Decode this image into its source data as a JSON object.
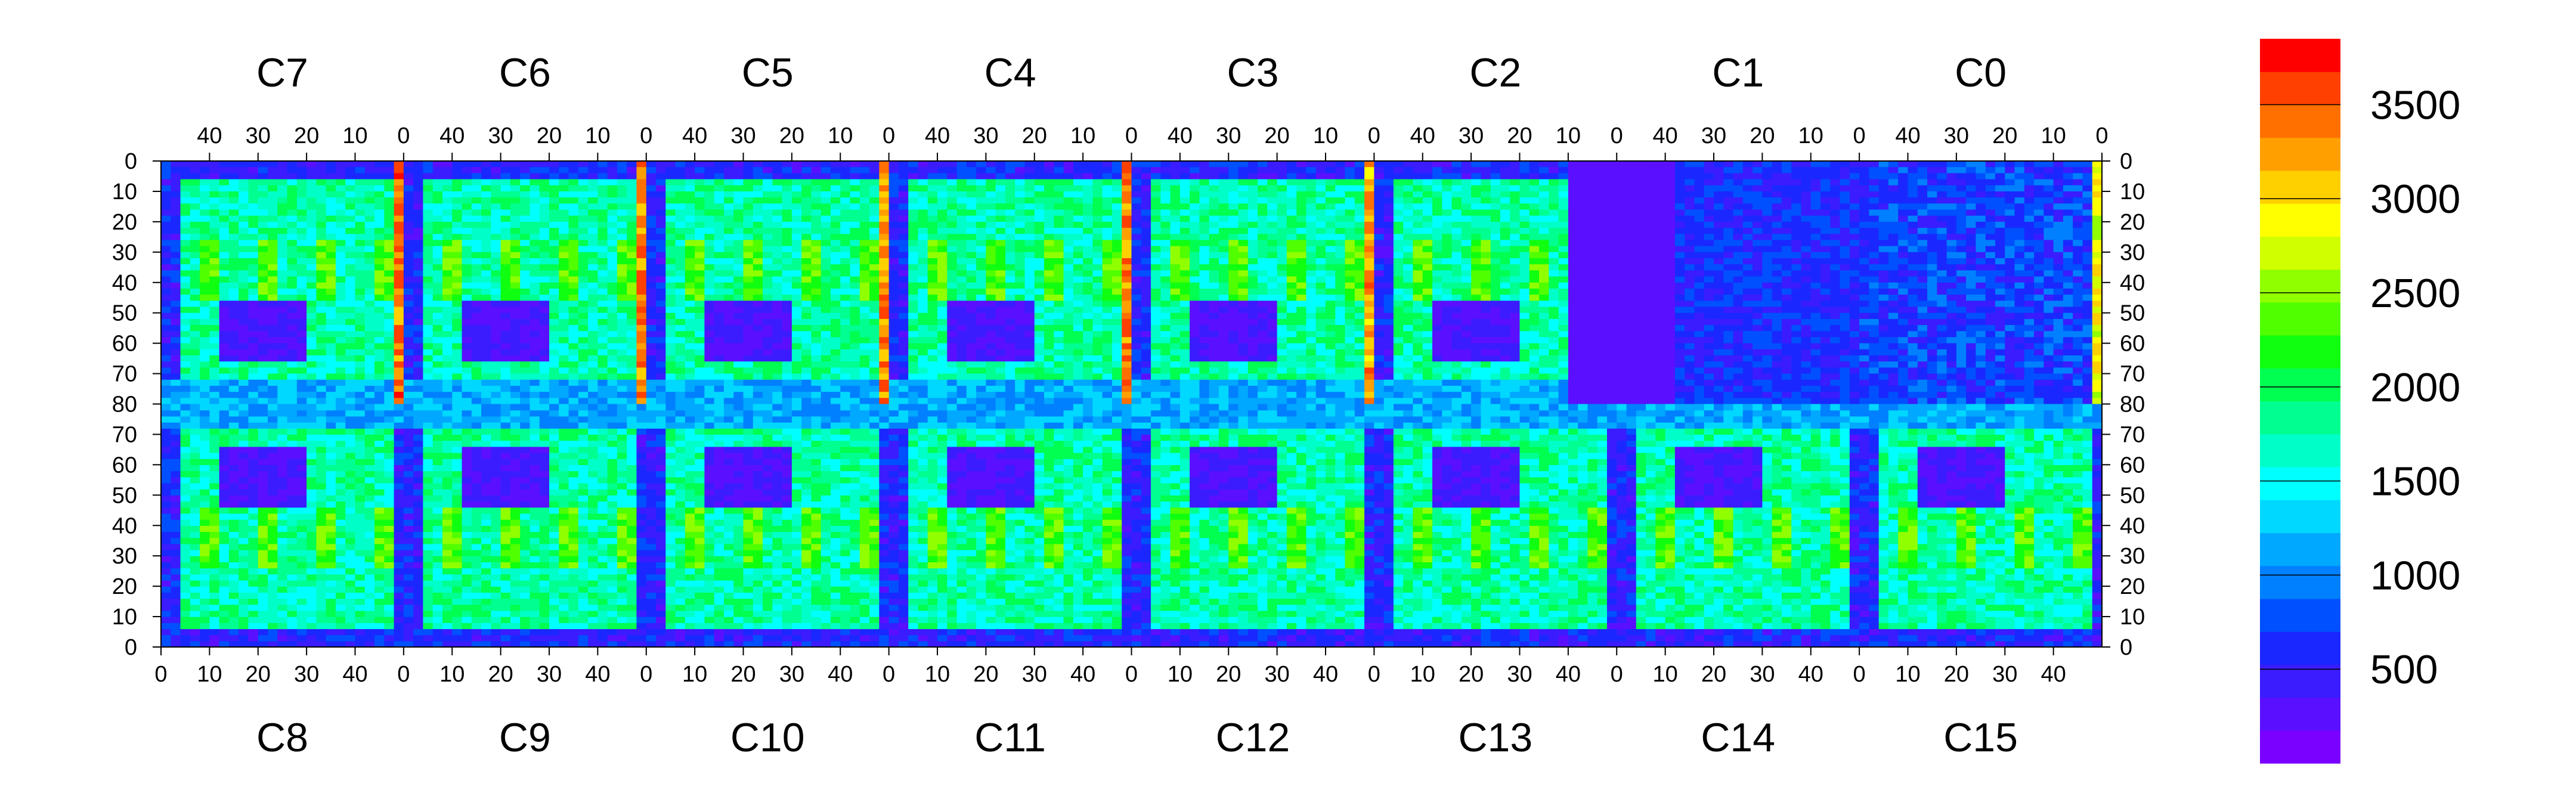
{
  "chart_data": {
    "type": "heatmap",
    "title": "",
    "xlabel": "",
    "ylabel": "",
    "chips_top": [
      "C7",
      "C6",
      "C5",
      "C4",
      "C3",
      "C2",
      "C1",
      "C0"
    ],
    "chips_bottom": [
      "C8",
      "C9",
      "C10",
      "C11",
      "C12",
      "C13",
      "C14",
      "C15"
    ],
    "top_axis_ticks": [
      "40",
      "30",
      "20",
      "10",
      "0"
    ],
    "bottom_axis_ticks": [
      "0",
      "10",
      "20",
      "30",
      "40"
    ],
    "left_axis_ticks": [
      "0",
      "10",
      "20",
      "30",
      "40",
      "50",
      "60",
      "70",
      "80",
      "70",
      "60",
      "50",
      "40",
      "30",
      "20",
      "10",
      "0"
    ],
    "right_axis_ticks": [
      "0",
      "10",
      "20",
      "30",
      "40",
      "50",
      "60",
      "70",
      "80",
      "70",
      "60",
      "50",
      "40",
      "30",
      "20",
      "10",
      "0"
    ],
    "columns_per_chip": 50,
    "rows_per_half": 80,
    "grid": false,
    "colorbar": {
      "range": [
        0,
        3850
      ],
      "tick_labels": [
        "500",
        "1000",
        "1500",
        "2000",
        "2500",
        "3000",
        "3500"
      ],
      "tick_values": [
        500,
        1000,
        1500,
        2000,
        2500,
        3000,
        3500
      ],
      "colors": [
        "#7a00ff",
        "#5a10ff",
        "#3a1cff",
        "#1a28ff",
        "#0050ff",
        "#0080ff",
        "#00a8ff",
        "#00d8ff",
        "#00ffff",
        "#00ffc8",
        "#00ff90",
        "#00ff50",
        "#10ff10",
        "#50ff00",
        "#90ff00",
        "#d0ff00",
        "#ffff00",
        "#ffd000",
        "#ffa000",
        "#ff7000",
        "#ff4000",
        "#ff0000"
      ]
    },
    "features": [
      {
        "kind": "hot_column",
        "chip": "C7",
        "col": 49,
        "level": 3600
      },
      {
        "kind": "hot_column",
        "chip": "C6",
        "col": 49,
        "level": 3500
      },
      {
        "kind": "hot_column",
        "chip": "C5",
        "col": 49,
        "level": 3500
      },
      {
        "kind": "hot_column",
        "chip": "C4",
        "col": 49,
        "level": 3500
      },
      {
        "kind": "hot_column",
        "chip": "C3",
        "col": 49,
        "level": 3400
      },
      {
        "kind": "hot_column",
        "chip": "C0",
        "col": 49,
        "level": 3000
      },
      {
        "kind": "dead_region",
        "chip": "C2",
        "from_col": 40,
        "to_col": 49,
        "level": 200
      },
      {
        "kind": "dead_region",
        "chip": "C1",
        "from_col": 0,
        "to_col": 10,
        "level": 200
      },
      {
        "kind": "low_activity",
        "chip": "C1",
        "level": 600
      },
      {
        "kind": "low_activity",
        "chip": "C0",
        "level": 700
      }
    ],
    "colors": {
      "low": "#7a00ff",
      "mid": "#00ff90",
      "high": "#ff0000",
      "missing": "#ffffff"
    }
  }
}
